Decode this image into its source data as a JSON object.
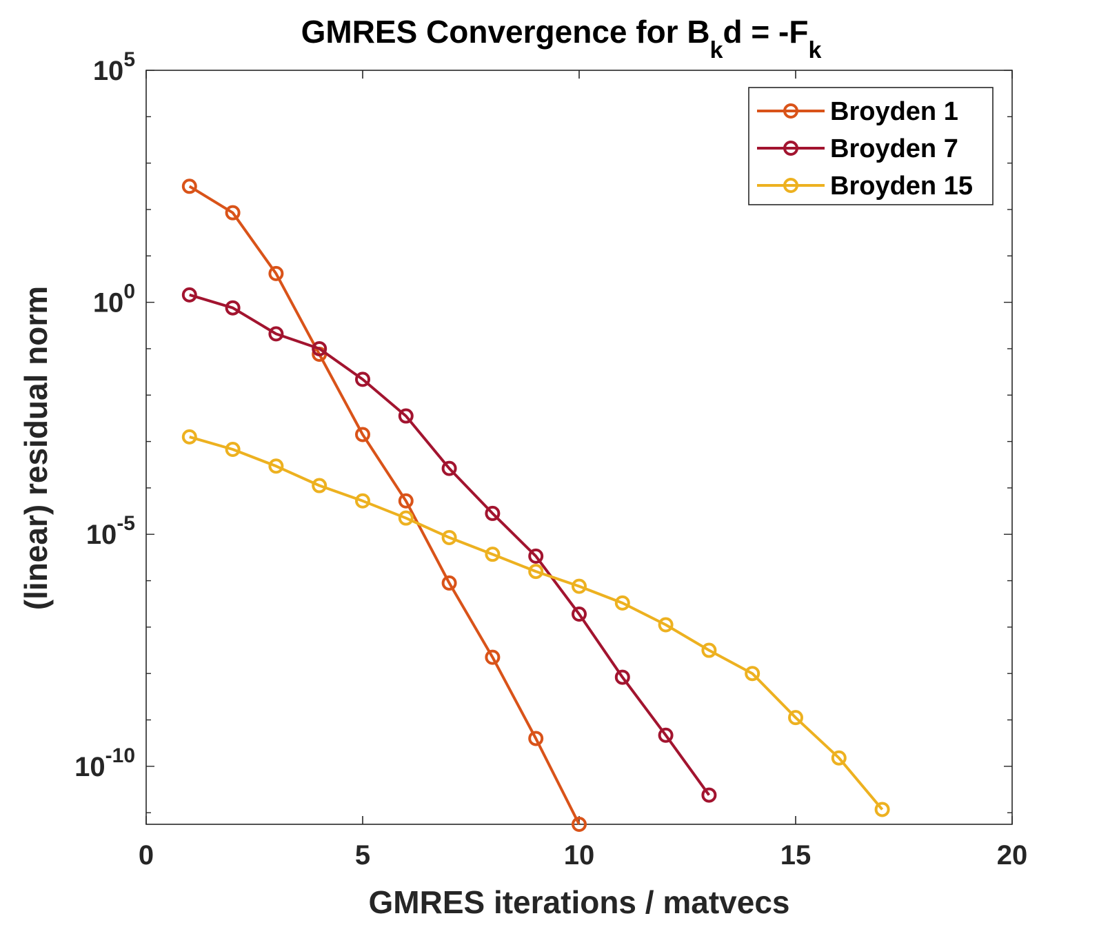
{
  "chart_data": {
    "type": "line",
    "title": {
      "main": "GMRES Convergence for B",
      "sub1": "k",
      "mid": "d = -F",
      "sub2": "k"
    },
    "xlabel": "GMRES iterations / matvecs",
    "ylabel": "(linear) residual norm",
    "xlim": [
      0,
      20
    ],
    "ylim_log10": [
      -11.25,
      5
    ],
    "yscale": "log",
    "x_ticks": [
      {
        "value": 0,
        "label": "0"
      },
      {
        "value": 5,
        "label": "5"
      },
      {
        "value": 10,
        "label": "10"
      },
      {
        "value": 15,
        "label": "15"
      },
      {
        "value": 20,
        "label": "20"
      }
    ],
    "y_ticks": [
      {
        "log10": 5,
        "base": "10",
        "exp": "5"
      },
      {
        "log10": 0,
        "base": "10",
        "exp": "0"
      },
      {
        "log10": -5,
        "base": "10",
        "exp": "-5"
      },
      {
        "log10": -10,
        "base": "10",
        "exp": "-10"
      }
    ],
    "legend_position": "top-right",
    "series": [
      {
        "name": "Broyden 1",
        "color": "#D95319",
        "x": [
          1,
          2,
          3,
          4,
          5,
          6,
          7,
          8,
          9,
          10
        ],
        "log10_values": [
          2.5,
          1.93,
          0.62,
          -1.12,
          -2.85,
          -4.28,
          -6.05,
          -7.65,
          -9.4,
          -11.25
        ]
      },
      {
        "name": "Broyden 7",
        "color": "#A2142F",
        "x": [
          1,
          2,
          3,
          4,
          5,
          6,
          7,
          8,
          9,
          10,
          11,
          12,
          13
        ],
        "log10_values": [
          0.16,
          -0.12,
          -0.68,
          -1.0,
          -1.66,
          -2.45,
          -3.58,
          -4.55,
          -5.47,
          -6.72,
          -8.08,
          -9.33,
          -10.62
        ]
      },
      {
        "name": "Broyden 15",
        "color": "#EDB120",
        "x": [
          1,
          2,
          3,
          4,
          5,
          6,
          7,
          8,
          9,
          10,
          11,
          12,
          13,
          14,
          15,
          16,
          17
        ],
        "log10_values": [
          -2.9,
          -3.17,
          -3.53,
          -3.95,
          -4.28,
          -4.65,
          -5.07,
          -5.43,
          -5.8,
          -6.12,
          -6.48,
          -6.95,
          -7.5,
          -8.0,
          -8.95,
          -9.82,
          -10.93
        ]
      }
    ]
  }
}
